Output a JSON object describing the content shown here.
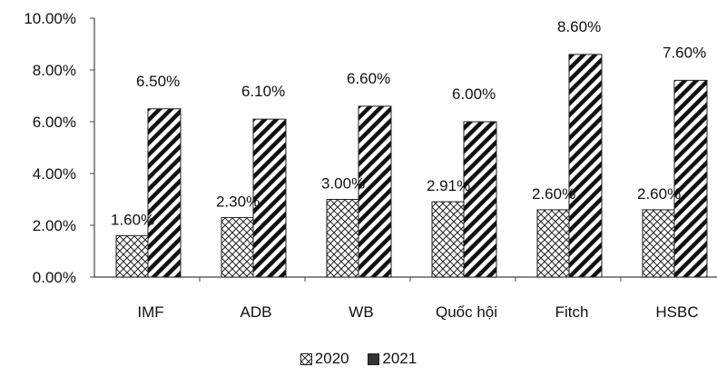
{
  "chart_data": {
    "type": "bar",
    "categories": [
      "IMF",
      "ADB",
      "WB",
      "Quốc hội",
      "Fitch",
      "HSBC"
    ],
    "series": [
      {
        "name": "2020",
        "values": [
          1.6,
          2.3,
          3.0,
          2.91,
          2.6,
          2.6
        ],
        "labels": [
          "1.60%",
          "2.30%",
          "3.00%",
          "2.91%",
          "2.60%",
          "2.60%"
        ],
        "pattern": "crosshatch"
      },
      {
        "name": "2021",
        "values": [
          6.5,
          6.1,
          6.6,
          6.0,
          8.6,
          7.6
        ],
        "labels": [
          "6.50%",
          "6.10%",
          "6.60%",
          "6.00%",
          "8.60%",
          "7.60%"
        ],
        "pattern": "diagonal-stripes"
      }
    ],
    "ylim": [
      0,
      10
    ],
    "yticks": [
      "0.00%",
      "2.00%",
      "4.00%",
      "6.00%",
      "8.00%",
      "10.00%"
    ],
    "title": "",
    "xlabel": "",
    "ylabel": "",
    "grid": false,
    "legend_position": "bottom",
    "colors": {
      "ink": "#111111",
      "background": "#ffffff"
    }
  }
}
